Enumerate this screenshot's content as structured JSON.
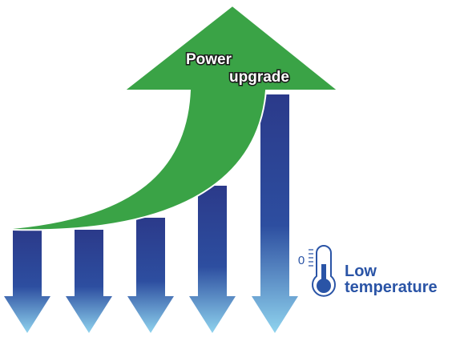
{
  "arrow": {
    "label_lines": [
      "Power",
      "upgrade"
    ]
  },
  "thermometer": {
    "scale_label": "0",
    "label_lines": [
      "Low",
      "temperature"
    ]
  }
}
